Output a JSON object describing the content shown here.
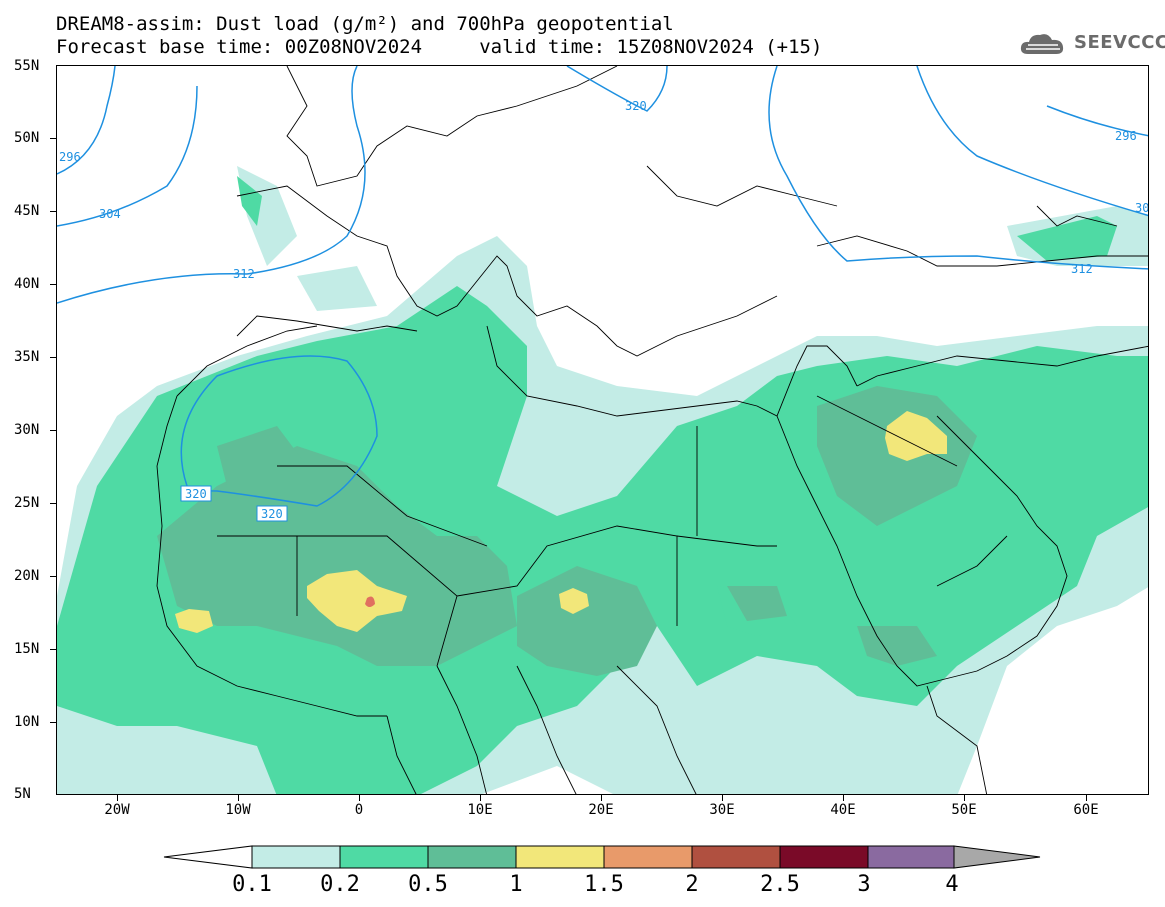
{
  "header": {
    "title_line1": "DREAM8-assim: Dust load (g/m²) and 700hPa geopotential",
    "title_line2": "Forecast base time: 00Z08NOV2024     valid time: 15Z08NOV2024 (+15)",
    "logo_text": "SEEVCCC"
  },
  "axes": {
    "lat_labels": [
      "55N",
      "50N",
      "45N",
      "40N",
      "35N",
      "30N",
      "25N",
      "20N",
      "15N",
      "10N",
      "5N"
    ],
    "lon_labels": [
      "20W",
      "10W",
      "0",
      "10E",
      "20E",
      "30E",
      "40E",
      "50E",
      "60E"
    ]
  },
  "contours": {
    "color": "#1e90e0",
    "labels": [
      "296",
      "304",
      "312",
      "320",
      "320",
      "320",
      "312",
      "296",
      "30"
    ]
  },
  "legend": {
    "levels": [
      "0.1",
      "0.2",
      "0.5",
      "1",
      "1.5",
      "2",
      "2.5",
      "3",
      "4"
    ],
    "colors": [
      "#ffffff",
      "#c3ece6",
      "#4fdaa4",
      "#5fbe97",
      "#f2e77a",
      "#e89a6a",
      "#b05040",
      "#7a0a28",
      "#8a6aa0",
      "#a8a8a8"
    ]
  },
  "map": {
    "colors": {
      "dust_light": "#c3ece6",
      "dust_mid": "#4fdaa4",
      "dust_dark": "#5fbe97",
      "dust_high": "#f2e77a",
      "dust_peak": "#e07060"
    }
  }
}
